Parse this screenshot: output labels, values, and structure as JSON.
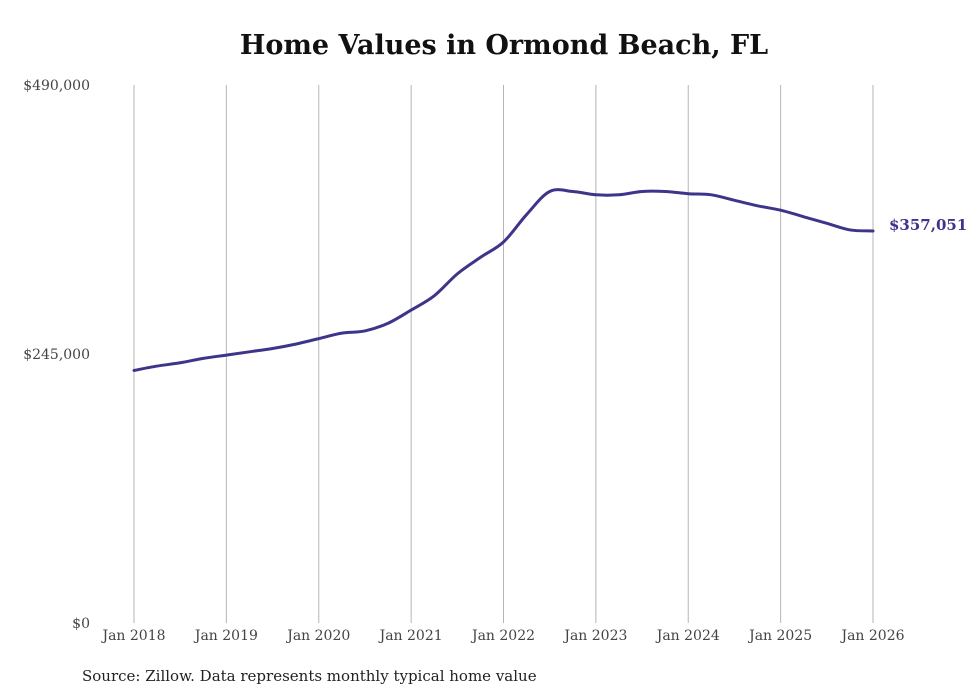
{
  "chart_data": {
    "type": "line",
    "title": "Home Values in Ormond Beach, FL",
    "xlabel": "",
    "ylabel": "",
    "x_tick_labels": [
      "Jan 2018",
      "Jan 2019",
      "Jan 2020",
      "Jan 2021",
      "Jan 2022",
      "Jan 2023",
      "Jan 2024",
      "Jan 2025",
      "Jan 2026"
    ],
    "y_tick_labels": [
      "$490,000",
      "$245,000",
      "$0"
    ],
    "ylim": [
      0,
      490000
    ],
    "xlim": [
      2018.0,
      2026.0
    ],
    "grid": "vertical",
    "series": [
      {
        "name": "Typical home value",
        "color": "#3d3589",
        "x": [
          2018.0,
          2018.25,
          2018.5,
          2018.75,
          2019.0,
          2019.25,
          2019.5,
          2019.75,
          2020.0,
          2020.25,
          2020.5,
          2020.75,
          2021.0,
          2021.25,
          2021.5,
          2021.75,
          2022.0,
          2022.25,
          2022.5,
          2022.75,
          2023.0,
          2023.25,
          2023.5,
          2023.75,
          2024.0,
          2024.25,
          2024.5,
          2024.75,
          2025.0,
          2025.25,
          2025.5,
          2025.75,
          2026.0
        ],
        "values": [
          230000,
          234000,
          237000,
          241000,
          244000,
          247000,
          250000,
          254000,
          259000,
          264000,
          266000,
          273000,
          285000,
          298000,
          318000,
          333000,
          347000,
          372000,
          393000,
          393000,
          390000,
          390000,
          393000,
          393000,
          391000,
          390000,
          385000,
          380000,
          376000,
          370000,
          364000,
          358000,
          357051
        ]
      }
    ],
    "end_label": "$357,051"
  },
  "source": "Source: Zillow. Data represents monthly typical home value"
}
